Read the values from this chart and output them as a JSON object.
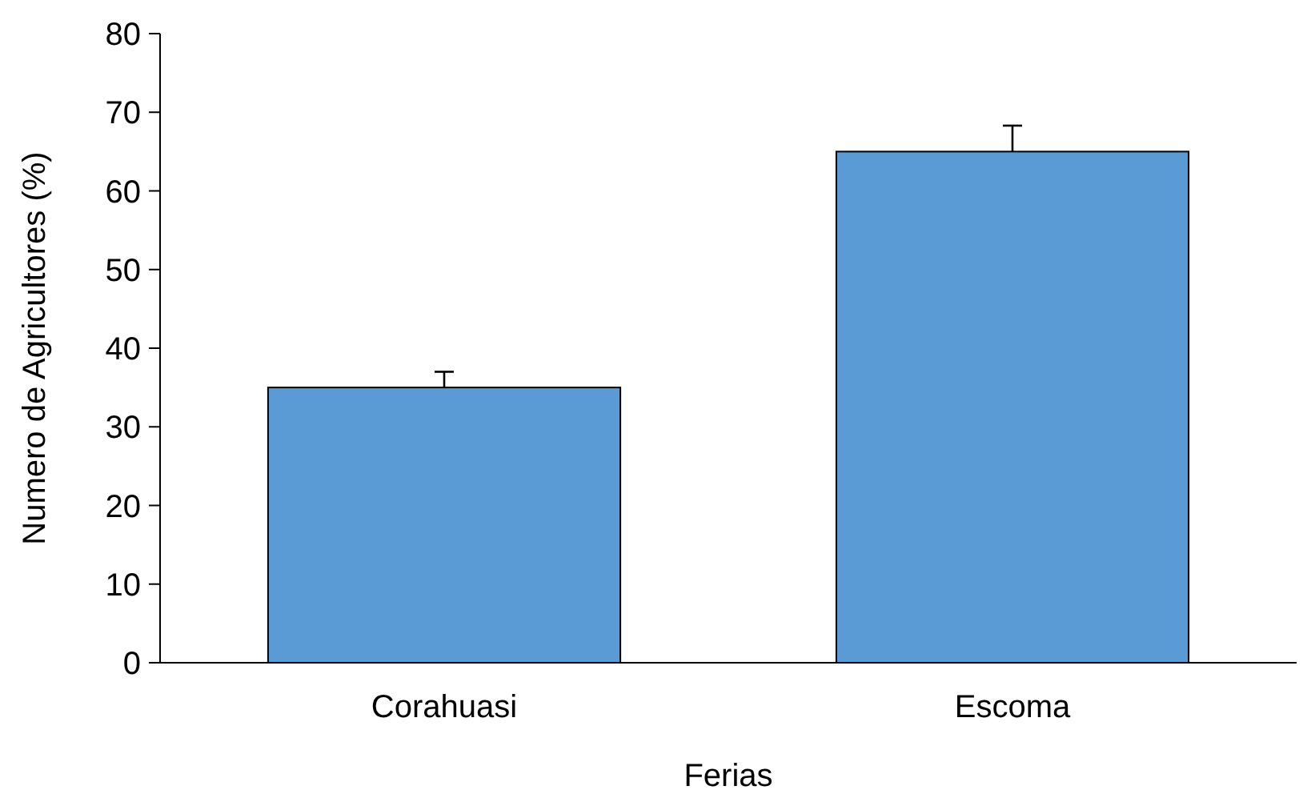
{
  "chart_data": {
    "type": "bar",
    "xlabel": "Ferias",
    "ylabel": "Numero de Agricultores (%)",
    "categories": [
      "Corahuasi",
      "Escoma"
    ],
    "values": [
      35,
      65
    ],
    "color": "#5b9bd5",
    "errors": [
      [
        35,
        37
      ],
      [
        65,
        68.3
      ]
    ],
    "ylim": [
      0,
      80
    ],
    "yticks": [
      0,
      10,
      20,
      30,
      40,
      50,
      60,
      70,
      80
    ],
    "grid": false
  }
}
